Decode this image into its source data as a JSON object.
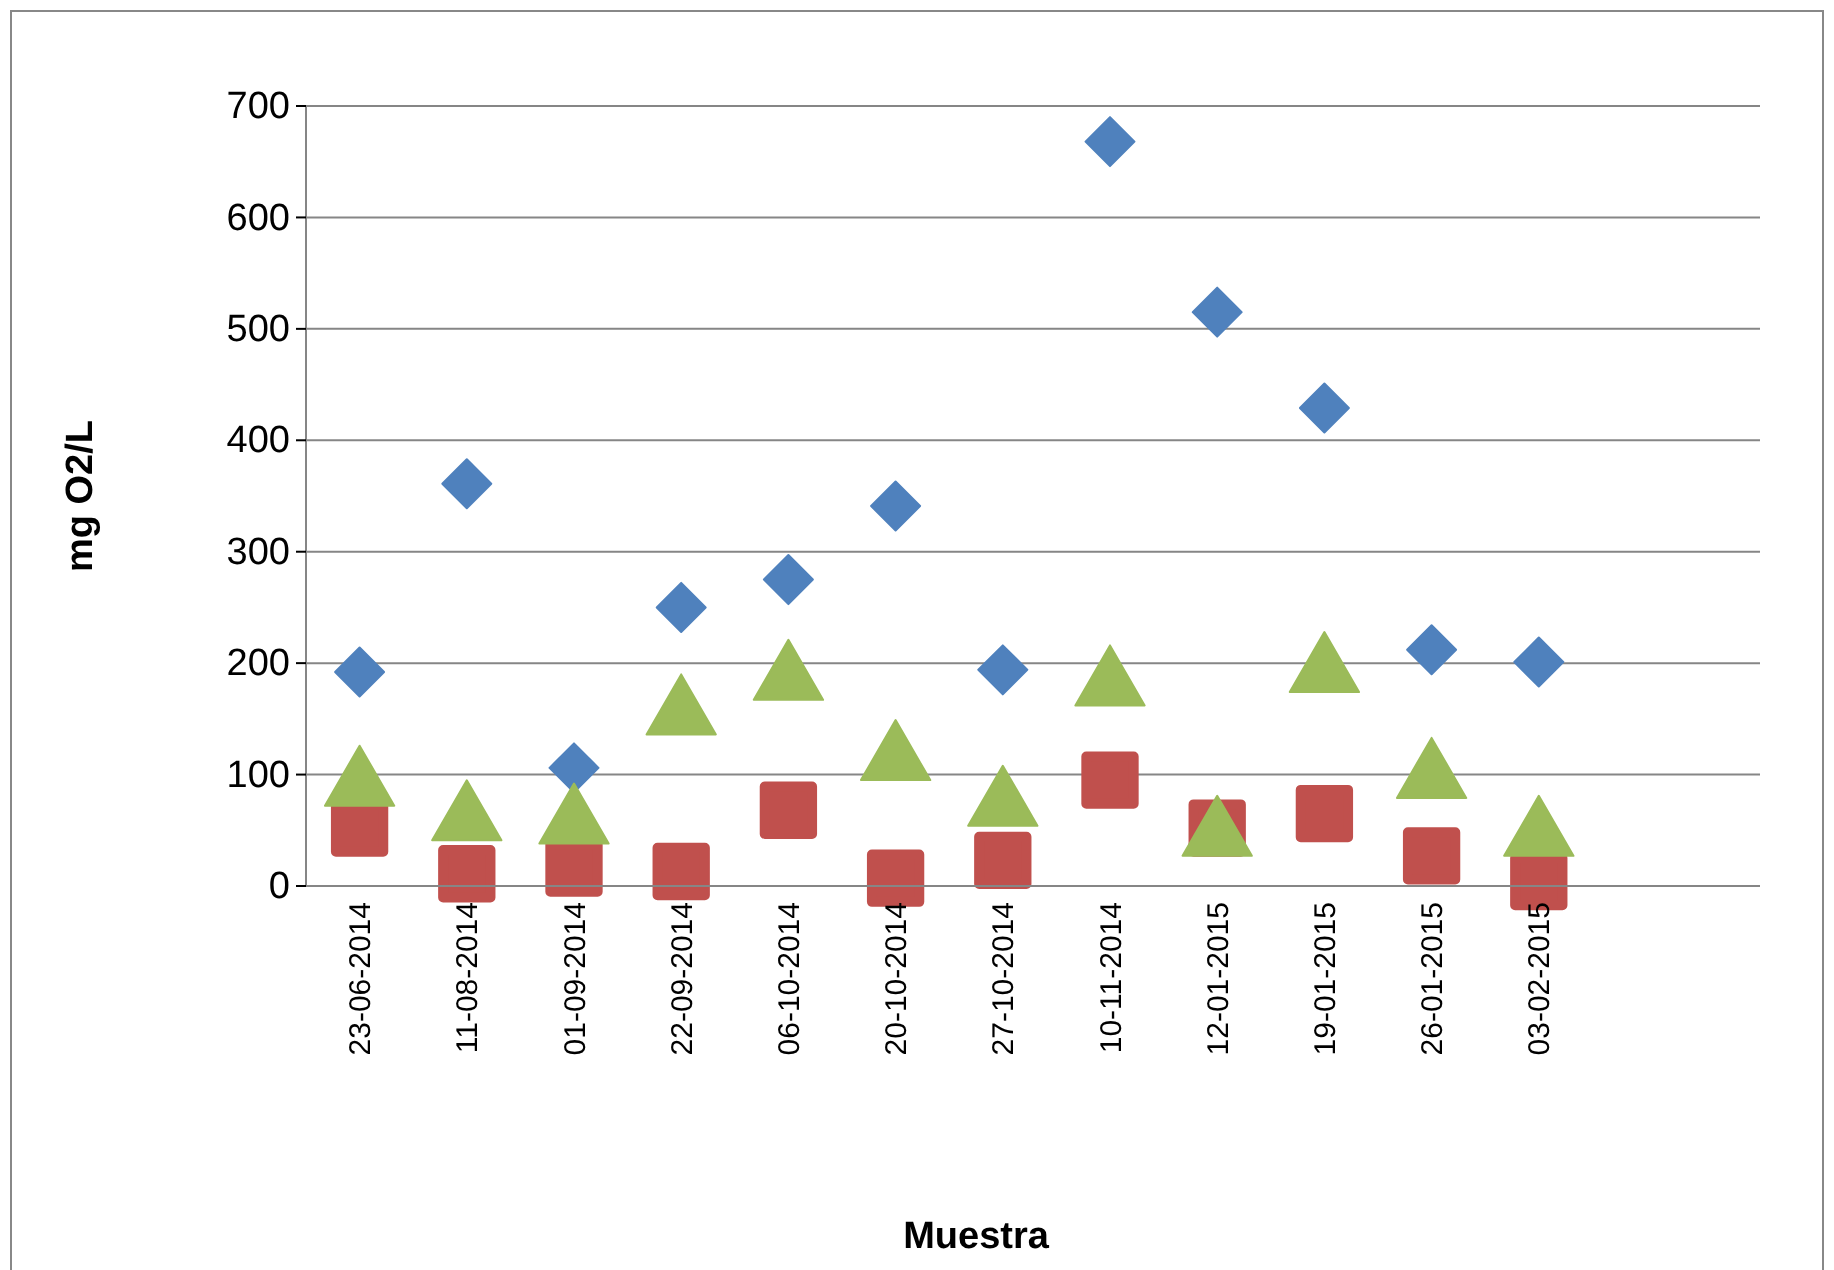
{
  "chart_data": {
    "type": "scatter",
    "xlabel": "Muestra",
    "ylabel": "mg O2/L",
    "categories": [
      "23-06-2014",
      "11-08-2014",
      "01-09-2014",
      "22-09-2014",
      "06-10-2014",
      "20-10-2014",
      "27-10-2014",
      "10-11-2014",
      "12-01-2015",
      "19-01-2015",
      "26-01-2015",
      "03-02-2015"
    ],
    "ylim": [
      0,
      700
    ],
    "yticks": [
      0,
      100,
      200,
      300,
      400,
      500,
      600,
      700
    ],
    "grid": "y",
    "series": [
      {
        "color": "#4f81bd",
        "marker": "diamond",
        "values": [
          192,
          361,
          106,
          250,
          275,
          341,
          194,
          668,
          515,
          429,
          212,
          201
        ]
      },
      {
        "color": "#c0504d",
        "marker": "square",
        "values": [
          52,
          11,
          16,
          13,
          68,
          7,
          23,
          95,
          52,
          65,
          27,
          4
        ]
      },
      {
        "color": "#9bbb59",
        "marker": "triangle",
        "values": [
          90,
          59,
          56,
          154,
          185,
          113,
          72,
          180,
          45,
          192,
          97,
          45
        ]
      }
    ]
  }
}
